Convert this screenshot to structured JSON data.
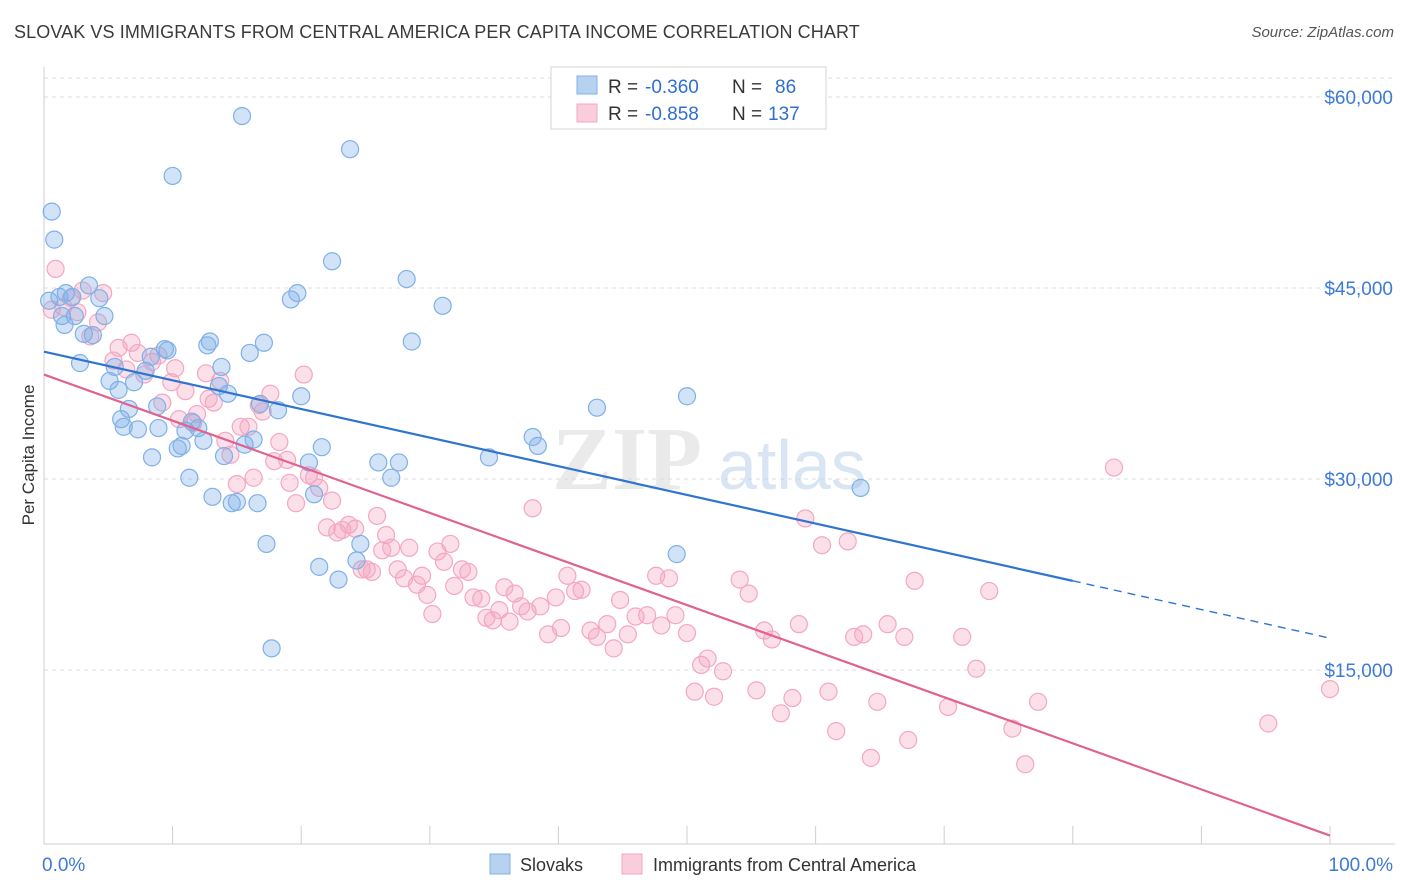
{
  "title": "SLOVAK VS IMMIGRANTS FROM CENTRAL AMERICA PER CAPITA INCOME CORRELATION CHART",
  "source": "Source: ZipAtlas.com",
  "watermark": {
    "zip": "ZIP",
    "atlas": "atlas"
  },
  "legend_top": [
    {
      "r_label": "R =",
      "r_value": "-0.360",
      "n_label": "N =",
      "n_value": "86",
      "color": "#7fb0e8"
    },
    {
      "r_label": "R =",
      "r_value": "-0.858",
      "n_label": "N =",
      "n_value": "137",
      "color": "#f4a7c0"
    }
  ],
  "legend_bottom": [
    {
      "label": "Slovaks",
      "color": "#7fb0e8"
    },
    {
      "label": "Immigrants from Central America",
      "color": "#f4a7c0"
    }
  ],
  "chart_data": {
    "type": "scatter",
    "xlabel": "",
    "ylabel": "Per Capita Income",
    "xlim": [
      0,
      100
    ],
    "ylim": [
      0,
      63000
    ],
    "x_tick_labels": [
      "0.0%",
      "100.0%"
    ],
    "y_ticks": [
      15000,
      30000,
      45000,
      60000
    ],
    "y_tick_labels": [
      "$15,000",
      "$30,000",
      "$45,000",
      "$60,000"
    ],
    "grid": true,
    "series": [
      {
        "name": "Slovaks",
        "color": "#7fb0e8",
        "line_color": "#2f75d0",
        "trend": {
          "x1": 0,
          "y1": 40000,
          "x2": 80,
          "y2": 22000,
          "dash_to_x": 100,
          "dash_to_y": 17500
        },
        "points": [
          [
            0.4,
            44000
          ],
          [
            0.6,
            51000
          ],
          [
            0.8,
            48800
          ],
          [
            1.2,
            44300
          ],
          [
            1.4,
            42800
          ],
          [
            1.6,
            42100
          ],
          [
            1.7,
            44600
          ],
          [
            2.2,
            44300
          ],
          [
            2.4,
            42800
          ],
          [
            2.8,
            39100
          ],
          [
            3.1,
            41400
          ],
          [
            3.5,
            45200
          ],
          [
            3.8,
            41300
          ],
          [
            4.3,
            44200
          ],
          [
            4.7,
            42800
          ],
          [
            5.1,
            37700
          ],
          [
            5.5,
            38800
          ],
          [
            5.8,
            37000
          ],
          [
            6.0,
            34700
          ],
          [
            6.2,
            34100
          ],
          [
            6.6,
            35500
          ],
          [
            7.0,
            37600
          ],
          [
            7.3,
            33900
          ],
          [
            7.9,
            38500
          ],
          [
            8.3,
            39600
          ],
          [
            8.4,
            31700
          ],
          [
            8.8,
            35700
          ],
          [
            8.9,
            34000
          ],
          [
            9.4,
            40200
          ],
          [
            9.6,
            40100
          ],
          [
            10.0,
            53800
          ],
          [
            10.4,
            32400
          ],
          [
            10.7,
            32600
          ],
          [
            11.0,
            33800
          ],
          [
            11.3,
            30100
          ],
          [
            11.5,
            34500
          ],
          [
            12.0,
            34000
          ],
          [
            12.4,
            33000
          ],
          [
            12.7,
            40500
          ],
          [
            12.9,
            40800
          ],
          [
            13.1,
            28600
          ],
          [
            13.6,
            37300
          ],
          [
            13.8,
            38800
          ],
          [
            14.0,
            31800
          ],
          [
            14.3,
            36700
          ],
          [
            14.6,
            28100
          ],
          [
            15.0,
            28200
          ],
          [
            15.4,
            58500
          ],
          [
            15.6,
            32700
          ],
          [
            16.0,
            39900
          ],
          [
            16.3,
            33100
          ],
          [
            16.6,
            28100
          ],
          [
            16.8,
            35900
          ],
          [
            17.1,
            40700
          ],
          [
            17.3,
            24900
          ],
          [
            17.7,
            16700
          ],
          [
            18.2,
            35400
          ],
          [
            19.2,
            44100
          ],
          [
            19.7,
            44600
          ],
          [
            20.0,
            36500
          ],
          [
            20.6,
            31300
          ],
          [
            21.0,
            28800
          ],
          [
            21.4,
            23100
          ],
          [
            21.6,
            32500
          ],
          [
            22.4,
            47100
          ],
          [
            22.9,
            22100
          ],
          [
            23.8,
            55900
          ],
          [
            24.3,
            23600
          ],
          [
            24.6,
            24900
          ],
          [
            26.0,
            31300
          ],
          [
            27.0,
            30100
          ],
          [
            27.6,
            31300
          ],
          [
            28.2,
            45700
          ],
          [
            28.6,
            40800
          ],
          [
            31.0,
            43600
          ],
          [
            34.6,
            31700
          ],
          [
            38.0,
            33300
          ],
          [
            38.4,
            32600
          ],
          [
            43.0,
            35600
          ],
          [
            49.2,
            24100
          ],
          [
            50.0,
            36500
          ],
          [
            63.5,
            29300
          ]
        ]
      },
      {
        "name": "Immigrants from Central America",
        "color": "#f4a7c0",
        "line_color": "#e0628f",
        "trend": {
          "x1": 0,
          "y1": 38200,
          "x2": 100,
          "y2": 2000
        },
        "points": [
          [
            0.6,
            43300
          ],
          [
            0.9,
            46500
          ],
          [
            1.5,
            43500
          ],
          [
            2.1,
            44200
          ],
          [
            2.6,
            43100
          ],
          [
            3.0,
            44800
          ],
          [
            3.6,
            41200
          ],
          [
            4.2,
            42300
          ],
          [
            4.6,
            44600
          ],
          [
            5.4,
            39300
          ],
          [
            5.8,
            40300
          ],
          [
            6.4,
            38600
          ],
          [
            6.8,
            40700
          ],
          [
            7.3,
            39900
          ],
          [
            7.8,
            38200
          ],
          [
            8.4,
            39200
          ],
          [
            8.9,
            39700
          ],
          [
            9.2,
            36000
          ],
          [
            9.9,
            37600
          ],
          [
            10.2,
            38700
          ],
          [
            10.5,
            34700
          ],
          [
            11.0,
            36900
          ],
          [
            11.6,
            34400
          ],
          [
            11.9,
            35100
          ],
          [
            12.6,
            38300
          ],
          [
            12.8,
            36300
          ],
          [
            13.2,
            36000
          ],
          [
            13.7,
            37700
          ],
          [
            14.1,
            33000
          ],
          [
            14.5,
            31900
          ],
          [
            15.0,
            29600
          ],
          [
            15.3,
            34100
          ],
          [
            15.9,
            34100
          ],
          [
            16.3,
            30100
          ],
          [
            16.7,
            35800
          ],
          [
            17.0,
            35300
          ],
          [
            17.6,
            36700
          ],
          [
            17.9,
            31400
          ],
          [
            18.3,
            32900
          ],
          [
            18.9,
            31500
          ],
          [
            19.1,
            29700
          ],
          [
            19.6,
            28100
          ],
          [
            20.2,
            38200
          ],
          [
            20.6,
            30300
          ],
          [
            21.0,
            30100
          ],
          [
            21.4,
            29300
          ],
          [
            22.0,
            26200
          ],
          [
            22.4,
            28300
          ],
          [
            22.8,
            25800
          ],
          [
            23.2,
            26000
          ],
          [
            23.7,
            26400
          ],
          [
            24.2,
            26100
          ],
          [
            24.7,
            22900
          ],
          [
            25.1,
            22900
          ],
          [
            25.5,
            22700
          ],
          [
            25.9,
            27100
          ],
          [
            26.3,
            24400
          ],
          [
            26.6,
            25600
          ],
          [
            27.0,
            24600
          ],
          [
            27.5,
            22900
          ],
          [
            28.0,
            22200
          ],
          [
            28.4,
            24600
          ],
          [
            29.0,
            21700
          ],
          [
            29.4,
            22400
          ],
          [
            29.8,
            20900
          ],
          [
            30.2,
            19400
          ],
          [
            30.6,
            24300
          ],
          [
            31.1,
            23500
          ],
          [
            31.6,
            24900
          ],
          [
            31.9,
            21600
          ],
          [
            32.5,
            22900
          ],
          [
            33.0,
            22700
          ],
          [
            33.4,
            20700
          ],
          [
            34.0,
            20600
          ],
          [
            34.4,
            19100
          ],
          [
            34.9,
            18900
          ],
          [
            35.4,
            19700
          ],
          [
            35.8,
            21500
          ],
          [
            36.2,
            18800
          ],
          [
            36.6,
            21000
          ],
          [
            37.1,
            20000
          ],
          [
            37.6,
            19600
          ],
          [
            38.0,
            27700
          ],
          [
            38.6,
            20000
          ],
          [
            39.2,
            17800
          ],
          [
            39.8,
            20700
          ],
          [
            40.2,
            18300
          ],
          [
            40.7,
            22400
          ],
          [
            41.3,
            21200
          ],
          [
            41.8,
            21300
          ],
          [
            42.5,
            18100
          ],
          [
            43.0,
            17600
          ],
          [
            43.8,
            18600
          ],
          [
            44.3,
            16700
          ],
          [
            44.8,
            20500
          ],
          [
            45.4,
            17800
          ],
          [
            46.0,
            19200
          ],
          [
            46.9,
            19300
          ],
          [
            47.6,
            22400
          ],
          [
            48.0,
            18500
          ],
          [
            48.6,
            22200
          ],
          [
            49.1,
            19300
          ],
          [
            50.0,
            17900
          ],
          [
            50.6,
            13300
          ],
          [
            51.1,
            15400
          ],
          [
            51.6,
            15900
          ],
          [
            52.1,
            12900
          ],
          [
            52.8,
            14900
          ],
          [
            54.1,
            22100
          ],
          [
            54.8,
            21000
          ],
          [
            55.4,
            13400
          ],
          [
            56.0,
            18100
          ],
          [
            56.6,
            17400
          ],
          [
            57.3,
            11600
          ],
          [
            58.2,
            12800
          ],
          [
            58.7,
            18600
          ],
          [
            59.2,
            26900
          ],
          [
            60.5,
            24800
          ],
          [
            61.0,
            13300
          ],
          [
            61.6,
            10200
          ],
          [
            62.5,
            25100
          ],
          [
            63.0,
            17600
          ],
          [
            63.7,
            17800
          ],
          [
            64.3,
            8100
          ],
          [
            64.8,
            12500
          ],
          [
            65.6,
            18600
          ],
          [
            66.9,
            17600
          ],
          [
            67.2,
            9500
          ],
          [
            67.7,
            22000
          ],
          [
            70.3,
            12100
          ],
          [
            71.4,
            17600
          ],
          [
            72.5,
            15100
          ],
          [
            73.5,
            21200
          ],
          [
            75.3,
            10400
          ],
          [
            76.3,
            7600
          ],
          [
            77.3,
            12500
          ],
          [
            83.2,
            30900
          ],
          [
            100.0,
            13500
          ],
          [
            95.2,
            10800
          ]
        ]
      }
    ]
  }
}
